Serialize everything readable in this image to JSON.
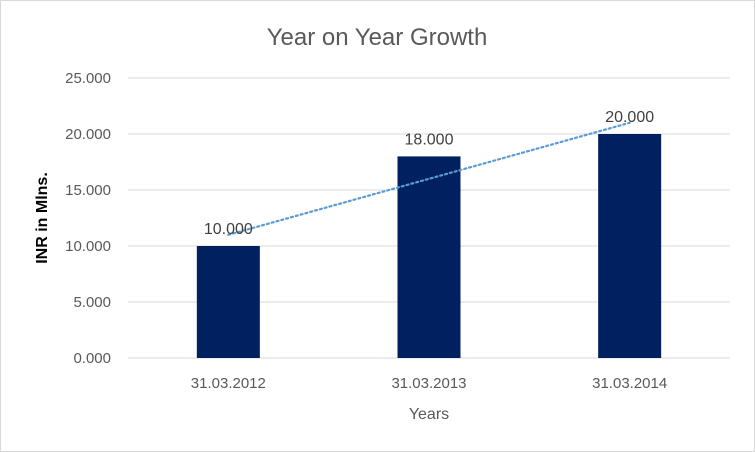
{
  "chart_data": {
    "type": "bar",
    "title": "Year on Year Growth",
    "xlabel": "Years",
    "ylabel": "INR in Mlns.",
    "categories": [
      "31.03.2012",
      "31.03.2013",
      "31.03.2014"
    ],
    "values": [
      10,
      18,
      20
    ],
    "data_labels": [
      "10.000",
      "18.000",
      "20.000"
    ],
    "y_ticks": [
      0,
      5,
      10,
      15,
      20,
      25
    ],
    "y_tick_labels": [
      "0.000",
      "5.000",
      "10.000",
      "15.000",
      "20.000",
      "25.000"
    ],
    "ylim": [
      0,
      25
    ],
    "grid": true,
    "legend": "none",
    "trendline": "linear",
    "colors": {
      "bar": "#002060",
      "trendline": "#5b9bd5",
      "grid": "#d9d9d9"
    }
  }
}
